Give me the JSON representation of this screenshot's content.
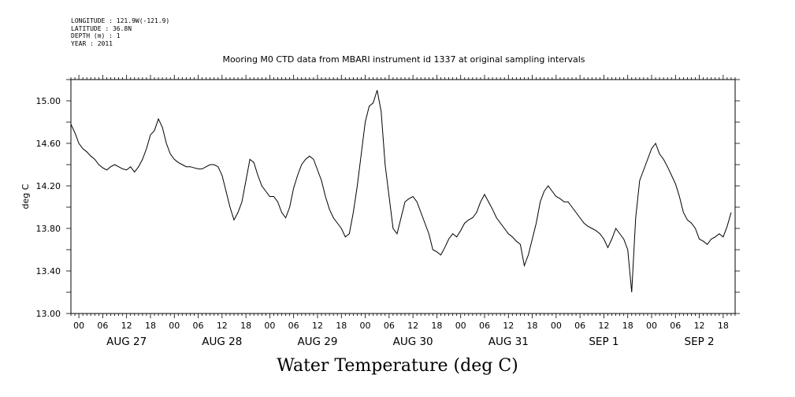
{
  "header": {
    "longitude": "LONGITUDE : 121.9W(-121.9)",
    "latitude": "LATITUDE : 36.8N",
    "depth": "DEPTH (m) : 1",
    "year": "YEAR : 2011"
  },
  "chart_data": {
    "type": "line",
    "title": "Mooring M0 CTD data from MBARI instrument id 1337 at original sampling intervals",
    "main_title": "Water Temperature (deg C)",
    "ylabel": "deg C",
    "xlabel": "",
    "ylim": [
      13.0,
      15.2
    ],
    "y_ticks": [
      "13.00",
      "13.40",
      "13.80",
      "14.20",
      "14.60",
      "15.00"
    ],
    "x_unit": "hours since Aug 27 00:00",
    "xlim": [
      -2,
      165
    ],
    "x_tick_labels": [
      "00",
      "06",
      "12",
      "18",
      "00",
      "06",
      "12",
      "18",
      "00",
      "06",
      "12",
      "18",
      "00",
      "06",
      "12",
      "18",
      "00",
      "06",
      "12",
      "18",
      "00",
      "06",
      "12",
      "18",
      "00",
      "06",
      "12",
      "18"
    ],
    "date_labels": [
      "AUG 27",
      "AUG 28",
      "AUG 29",
      "AUG 30",
      "AUG 31",
      "SEP 1",
      "SEP 2"
    ],
    "grid": false,
    "series": [
      {
        "color": "#000000",
        "x": [
          -2,
          -1,
          0,
          1,
          2,
          3,
          4,
          5,
          6,
          7,
          8,
          9,
          10,
          11,
          12,
          13,
          14,
          15,
          16,
          17,
          18,
          19,
          20,
          21,
          22,
          23,
          24,
          25,
          26,
          27,
          28,
          29,
          30,
          31,
          32,
          33,
          34,
          35,
          36,
          37,
          38,
          39,
          40,
          41,
          42,
          43,
          44,
          45,
          46,
          47,
          48,
          49,
          50,
          51,
          52,
          53,
          54,
          55,
          56,
          57,
          58,
          59,
          60,
          61,
          62,
          63,
          64,
          65,
          66,
          67,
          68,
          69,
          70,
          71,
          72,
          73,
          74,
          75,
          76,
          77,
          78,
          79,
          80,
          81,
          82,
          83,
          84,
          85,
          86,
          87,
          88,
          89,
          90,
          91,
          92,
          93,
          94,
          95,
          96,
          97,
          98,
          99,
          100,
          101,
          102,
          103,
          104,
          105,
          106,
          107,
          108,
          109,
          110,
          111,
          112,
          113,
          114,
          115,
          116,
          117,
          118,
          119,
          120,
          121,
          122,
          123,
          124,
          125,
          126,
          127,
          128,
          129,
          130,
          131,
          132,
          133,
          134,
          135,
          136,
          137,
          138,
          139,
          140,
          141,
          142,
          143,
          144,
          145,
          146,
          147,
          148,
          149,
          150,
          151,
          152,
          153,
          154,
          155,
          156,
          157,
          158,
          159,
          160,
          161,
          162,
          163,
          164
        ],
        "y": [
          14.78,
          14.7,
          14.6,
          14.55,
          14.52,
          14.48,
          14.45,
          14.4,
          14.37,
          14.35,
          14.38,
          14.4,
          14.38,
          14.36,
          14.35,
          14.38,
          14.33,
          14.38,
          14.45,
          14.55,
          14.68,
          14.72,
          14.83,
          14.75,
          14.6,
          14.5,
          14.45,
          14.42,
          14.4,
          14.38,
          14.38,
          14.37,
          14.36,
          14.36,
          14.38,
          14.4,
          14.4,
          14.38,
          14.3,
          14.15,
          14.0,
          13.88,
          13.95,
          14.05,
          14.25,
          14.45,
          14.42,
          14.3,
          14.2,
          14.15,
          14.1,
          14.1,
          14.05,
          13.95,
          13.9,
          14.0,
          14.18,
          14.3,
          14.4,
          14.45,
          14.48,
          14.45,
          14.35,
          14.25,
          14.1,
          13.98,
          13.9,
          13.85,
          13.8,
          13.72,
          13.75,
          13.95,
          14.2,
          14.5,
          14.8,
          14.95,
          14.98,
          15.1,
          14.9,
          14.4,
          14.1,
          13.8,
          13.75,
          13.9,
          14.05,
          14.08,
          14.1,
          14.05,
          13.95,
          13.85,
          13.75,
          13.6,
          13.58,
          13.55,
          13.62,
          13.7,
          13.75,
          13.72,
          13.78,
          13.85,
          13.88,
          13.9,
          13.95,
          14.05,
          14.12,
          14.05,
          13.98,
          13.9,
          13.85,
          13.8,
          13.75,
          13.72,
          13.68,
          13.65,
          13.45,
          13.55,
          13.7,
          13.85,
          14.05,
          14.15,
          14.2,
          14.15,
          14.1,
          14.08,
          14.05,
          14.05,
          14.0,
          13.95,
          13.9,
          13.85,
          13.82,
          13.8,
          13.78,
          13.75,
          13.7,
          13.62,
          13.7,
          13.8,
          13.75,
          13.7,
          13.6,
          13.2,
          13.9,
          14.25,
          14.35,
          14.45,
          14.55,
          14.6,
          14.5,
          14.45,
          14.38,
          14.3,
          14.22,
          14.1,
          13.95,
          13.88,
          13.85,
          13.8,
          13.7,
          13.68,
          13.65,
          13.7,
          13.72,
          13.75,
          13.72,
          13.82,
          13.95
        ]
      }
    ]
  }
}
